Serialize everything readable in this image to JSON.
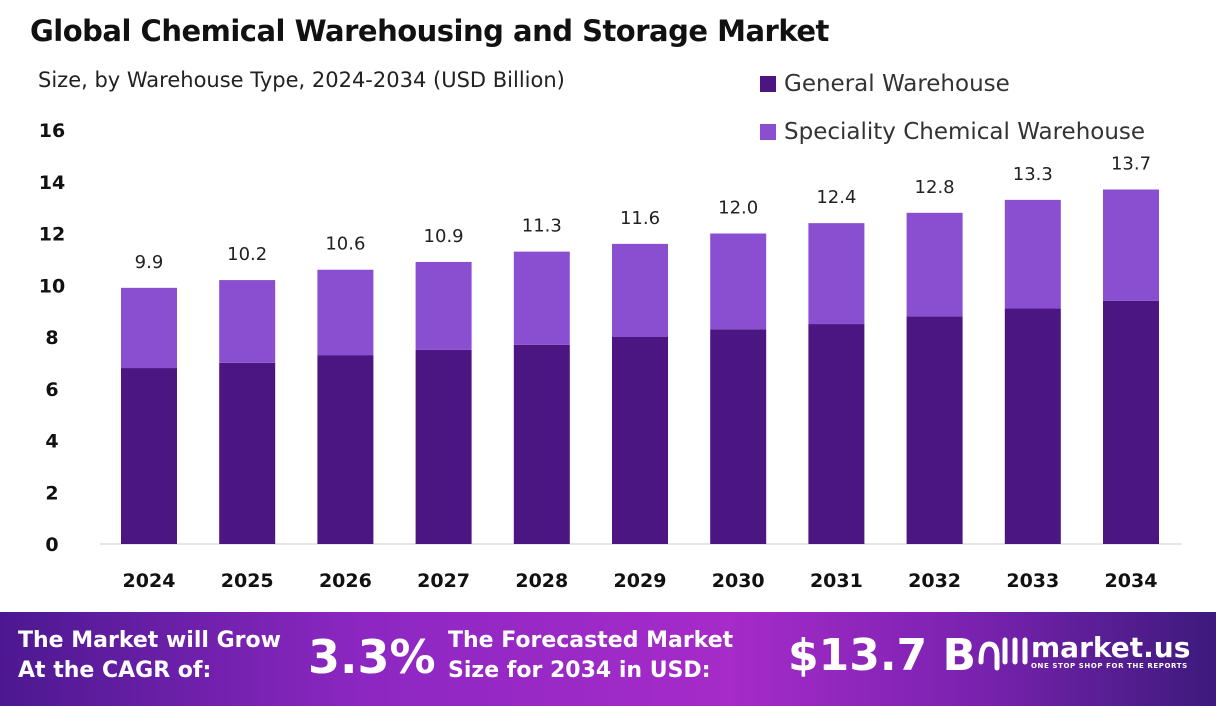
{
  "chart_data": {
    "type": "bar",
    "stacked": true,
    "title": "Global Chemical Warehousing and Storage Market",
    "subtitle": "Size, by Warehouse Type, 2024-2034 (USD Billion)",
    "categories": [
      "2024",
      "2025",
      "2026",
      "2027",
      "2028",
      "2029",
      "2030",
      "2031",
      "2032",
      "2033",
      "2034"
    ],
    "series": [
      {
        "name": "General Warehouse",
        "color": "#4b1582",
        "values": [
          6.8,
          7.0,
          7.3,
          7.5,
          7.7,
          8.0,
          8.3,
          8.5,
          8.8,
          9.1,
          9.4
        ]
      },
      {
        "name": "Speciality Chemical Warehouse",
        "color": "#8a4fd0",
        "values": [
          3.1,
          3.2,
          3.3,
          3.4,
          3.6,
          3.6,
          3.7,
          3.9,
          4.0,
          4.2,
          4.3
        ]
      }
    ],
    "totals": [
      "9.9",
      "10.2",
      "10.6",
      "10.9",
      "11.3",
      "11.6",
      "12.0",
      "12.4",
      "12.8",
      "13.3",
      "13.7"
    ],
    "ylim": [
      0,
      16
    ],
    "yticks": [
      0,
      2,
      4,
      6,
      8,
      10,
      12,
      14,
      16
    ],
    "grid": false,
    "legend": "top-right"
  },
  "banner": {
    "cagr_label_1": "The Market will Grow",
    "cagr_label_2": "At the CAGR of:",
    "cagr_value": "3.3%",
    "forecast_label_1": "The Forecasted Market",
    "forecast_label_2": "Size for 2034 in USD:",
    "forecast_value": "$13.7 B",
    "logo_name": "market.us",
    "logo_tagline": "ONE STOP SHOP FOR THE REPORTS"
  }
}
